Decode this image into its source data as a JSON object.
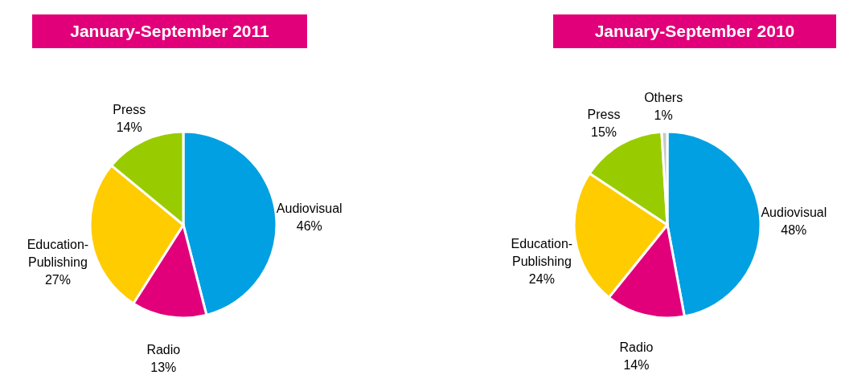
{
  "chart_data": [
    {
      "type": "pie",
      "title": "January-September 2011",
      "categories": [
        "Audiovisual",
        "Radio",
        "Education-Publishing",
        "Press"
      ],
      "values": [
        46,
        13,
        27,
        14
      ],
      "value_labels": [
        "46%",
        "13%",
        "27%",
        "14%"
      ],
      "colors": [
        "#00a0e2",
        "#e2007a",
        "#ffcc00",
        "#99cc00"
      ]
    },
    {
      "type": "pie",
      "title": "January-September 2010",
      "categories": [
        "Audiovisual",
        "Radio",
        "Education-Publishing",
        "Press",
        "Others"
      ],
      "values": [
        48,
        14,
        24,
        15,
        1
      ],
      "value_labels": [
        "48%",
        "14%",
        "24%",
        "15%",
        "1%"
      ],
      "colors": [
        "#00a0e2",
        "#e2007a",
        "#ffcc00",
        "#99cc00",
        "#c8c8c8"
      ]
    }
  ]
}
